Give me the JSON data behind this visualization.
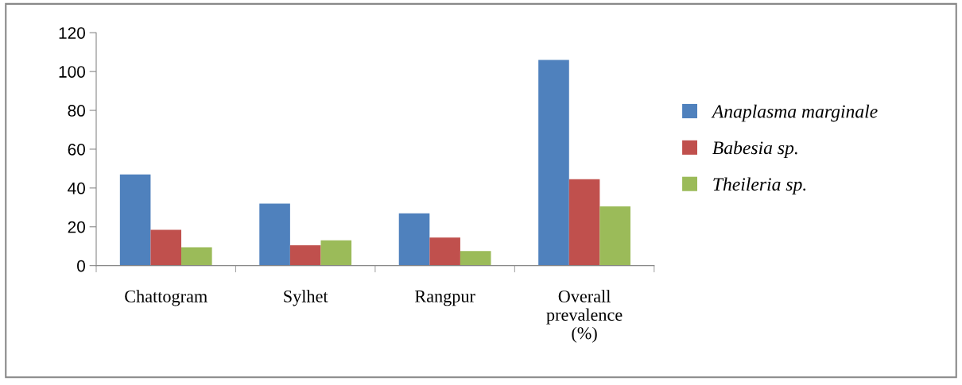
{
  "chart_data": {
    "type": "bar",
    "categories": [
      "Chattogram",
      "Sylhet",
      "Rangpur",
      "Overall\nprevalence\n(%)"
    ],
    "series": [
      {
        "name": "Anaplasma marginale",
        "color": "#4f81bd",
        "values": [
          47,
          32,
          27,
          106
        ]
      },
      {
        "name": "Babesia sp.",
        "color": "#c0504d",
        "values": [
          18.5,
          10.5,
          14.5,
          44.5
        ]
      },
      {
        "name": "Theileria sp.",
        "color": "#9bbb59",
        "values": [
          9.5,
          13,
          7.5,
          30.5
        ]
      }
    ],
    "ylim": [
      0,
      120
    ],
    "yticks": [
      0,
      20,
      40,
      60,
      80,
      100,
      120
    ],
    "grid": false,
    "legend": "right"
  }
}
